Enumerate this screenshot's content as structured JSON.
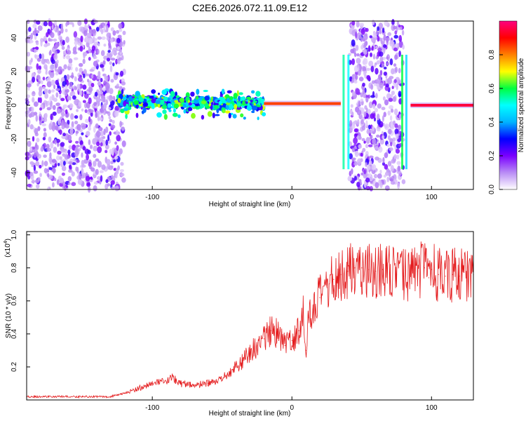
{
  "title": "C2E6.2026.072.11.09.E12",
  "chart_data": [
    {
      "type": "heatmap",
      "name": "spectrogram",
      "xlabel": "Height of straight line (km)",
      "ylabel": "Frequency (Hz)",
      "xlim": [
        -190,
        130
      ],
      "ylim": [
        -50,
        50
      ],
      "xticks": [
        -100,
        0,
        100
      ],
      "yticks": [
        -40,
        -20,
        0,
        20,
        40
      ],
      "colorbar": {
        "label": "Normalized spectral amplitude",
        "range": [
          0,
          1
        ],
        "ticks": [
          0.0,
          0.2,
          0.4,
          0.6,
          0.8
        ],
        "colors": [
          "#ffffff",
          "#b98cf5",
          "#7a00ff",
          "#0000ff",
          "#00b4ff",
          "#00ffff",
          "#00ff40",
          "#ffff00",
          "#ff8000",
          "#ff0000",
          "#ff007f"
        ]
      },
      "regions": [
        {
          "x": [
            -190,
            -120
          ],
          "f": [
            -50,
            50
          ],
          "kind": "noise",
          "level": 0.15
        },
        {
          "x": [
            -125,
            -20
          ],
          "f": [
            -10,
            8
          ],
          "kind": "scatter",
          "level": 0.45
        },
        {
          "x": [
            -20,
            35
          ],
          "f": [
            -1,
            3
          ],
          "kind": "line",
          "level": 0.85
        },
        {
          "x": [
            41,
            80
          ],
          "f": [
            -50,
            50
          ],
          "kind": "noise",
          "level": 0.2
        },
        {
          "x": [
            85,
            130
          ],
          "f": [
            -1,
            1
          ],
          "kind": "line",
          "level": 0.95
        }
      ]
    },
    {
      "type": "line",
      "name": "snr",
      "xlabel": "Height of straight line (km)",
      "ylabel": "SNR (10 * v/v)",
      "multiplier": "(x10",
      "multiplier_exp": "4",
      "multiplier_close": ")",
      "xlim": [
        -190,
        130
      ],
      "ylim": [
        0,
        1.02
      ],
      "xticks": [
        -100,
        0,
        100
      ],
      "yticks": [
        0.2,
        0.4,
        0.6,
        0.8,
        1.0
      ],
      "color": "#e41a1c",
      "series": [
        {
          "name": "SNR",
          "x": [
            -190,
            -170,
            -150,
            -130,
            -120,
            -110,
            -100,
            -90,
            -85,
            -80,
            -70,
            -60,
            -50,
            -45,
            -40,
            -35,
            -30,
            -25,
            -20,
            -15,
            -10,
            -5,
            0,
            5,
            8,
            10,
            12,
            15,
            20,
            25,
            30,
            35,
            40,
            45,
            50,
            55,
            60,
            65,
            70,
            75,
            80,
            85,
            90,
            95,
            98,
            100,
            105,
            110,
            115,
            120,
            125,
            130
          ],
          "y": [
            0.02,
            0.02,
            0.02,
            0.02,
            0.04,
            0.07,
            0.1,
            0.11,
            0.14,
            0.1,
            0.09,
            0.1,
            0.12,
            0.17,
            0.2,
            0.24,
            0.29,
            0.33,
            0.37,
            0.42,
            0.4,
            0.33,
            0.36,
            0.42,
            0.55,
            0.3,
            0.5,
            0.55,
            0.62,
            0.68,
            0.73,
            0.76,
            0.78,
            0.8,
            0.8,
            0.79,
            0.78,
            0.79,
            0.77,
            0.76,
            0.75,
            0.77,
            0.78,
            0.8,
            0.74,
            0.79,
            0.76,
            0.75,
            0.76,
            0.75,
            0.76,
            0.76
          ]
        }
      ]
    }
  ]
}
